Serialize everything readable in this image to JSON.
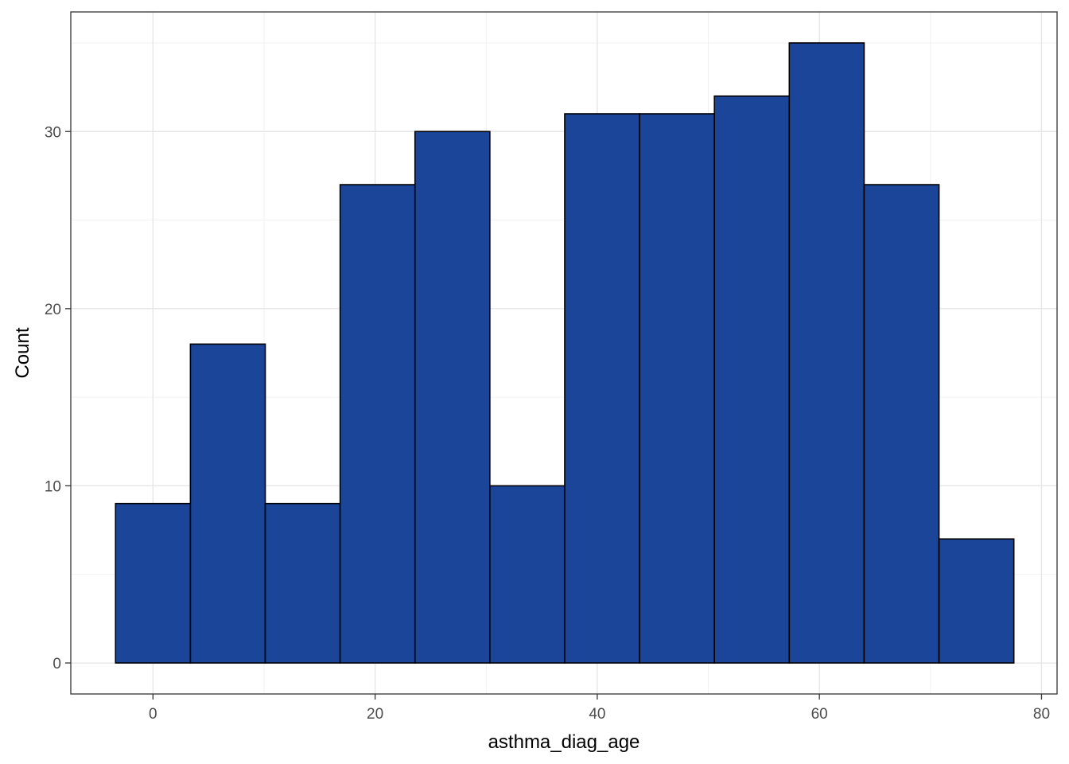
{
  "chart_data": {
    "type": "bar",
    "subtype": "histogram",
    "xlabel": "asthma_diag_age",
    "ylabel": "Count",
    "xlim": [
      -7.4,
      81.4
    ],
    "ylim": [
      -1.75,
      36.75
    ],
    "x_ticks": [
      0,
      20,
      40,
      60,
      80
    ],
    "y_ticks": [
      0,
      10,
      20,
      30
    ],
    "grid": true,
    "bar_color": "#1A4599",
    "bar_edge_color": "#000000",
    "bins": [
      {
        "x0": -3.37,
        "x1": 3.37,
        "count": 9
      },
      {
        "x0": 3.37,
        "x1": 10.11,
        "count": 18
      },
      {
        "x0": 10.11,
        "x1": 16.85,
        "count": 9
      },
      {
        "x0": 16.85,
        "x1": 23.59,
        "count": 27
      },
      {
        "x0": 23.59,
        "x1": 30.33,
        "count": 30
      },
      {
        "x0": 30.33,
        "x1": 37.07,
        "count": 10
      },
      {
        "x0": 37.07,
        "x1": 43.81,
        "count": 31
      },
      {
        "x0": 43.81,
        "x1": 50.55,
        "count": 31
      },
      {
        "x0": 50.55,
        "x1": 57.29,
        "count": 32
      },
      {
        "x0": 57.29,
        "x1": 64.03,
        "count": 35
      },
      {
        "x0": 64.03,
        "x1": 70.77,
        "count": 27
      },
      {
        "x0": 70.77,
        "x1": 77.51,
        "count": 7
      }
    ]
  }
}
